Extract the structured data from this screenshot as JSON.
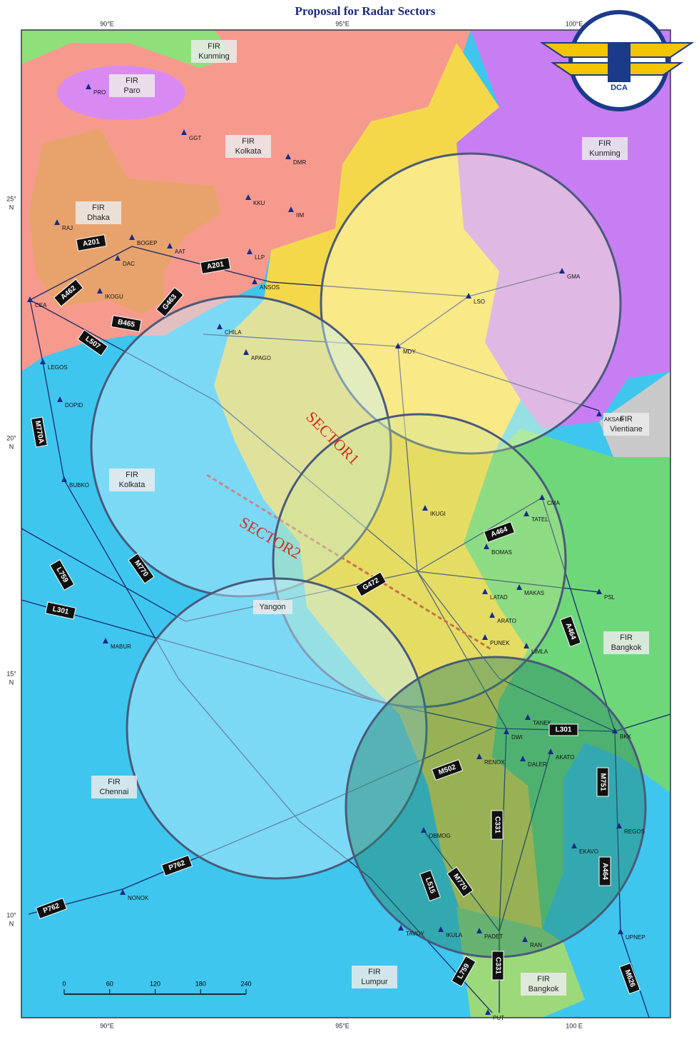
{
  "title": "Proposal for Radar Sectors",
  "logo": "DCA",
  "lon_top": [
    "90°E",
    "95°E",
    "100°E"
  ],
  "lon_bottom": [
    "90°E",
    "95°E",
    "100 E"
  ],
  "lat": [
    [
      "25°",
      "N"
    ],
    [
      "20°",
      "N"
    ],
    [
      "15°",
      "N"
    ],
    [
      "10°",
      "N"
    ]
  ],
  "firs": [
    [
      "FIR",
      "Kunming"
    ],
    [
      "FIR",
      "Paro"
    ],
    [
      "FIR",
      "Kolkata"
    ],
    [
      "FIR",
      "Kunming"
    ],
    [
      "FIR",
      "Dhaka"
    ],
    [
      "FIR",
      "Vientiane"
    ],
    [
      "FIR",
      "Kolkata"
    ],
    [
      "FIR",
      "Bangkok"
    ],
    [
      "FIR",
      "Chennai"
    ],
    [
      "FIR",
      "Lumpur"
    ],
    [
      "FIR",
      "Bangkok"
    ]
  ],
  "city": "Yangon",
  "sectors": [
    "SECTOR1",
    "SECTOR2"
  ],
  "waypoints": [
    "PRO",
    "GGT",
    "DMR",
    "KKU",
    "IIM",
    "RAJ",
    "BOGEP",
    "AAT",
    "DAC",
    "LLP",
    "ANSOS",
    "IKOGU",
    "CEA",
    "LEGOS",
    "DOPID",
    "BUBKO",
    "MABUR",
    "NONOK",
    "AKSAG",
    "CMA",
    "TATEL",
    "BOMAS",
    "MAKAS",
    "PSL",
    "LATAD",
    "ARATO",
    "PUNEK",
    "LIMLA",
    "TANEK",
    "DWI",
    "BKK",
    "RENOX",
    "DALER",
    "AKATO",
    "REGOS",
    "EKAVO",
    "OBMOG",
    "TAVOY",
    "IKULA",
    "PADET",
    "RAN",
    "UPNEP",
    "PUT",
    "LSO",
    "GMA",
    "CHILA",
    "APAGO",
    "MDY",
    "IKUGI"
  ],
  "routes": [
    "A201",
    "A201",
    "A462",
    "B465",
    "G463",
    "L507",
    "M770A",
    "M770",
    "L759",
    "L301",
    "P762",
    "P762",
    "A464",
    "M751",
    "A464",
    "M626",
    "L759",
    "C331",
    "G472",
    "A464",
    "M502",
    "L301",
    "C331",
    "M770",
    "L515"
  ],
  "scale": [
    "0",
    "60",
    "120",
    "180",
    "240"
  ]
}
